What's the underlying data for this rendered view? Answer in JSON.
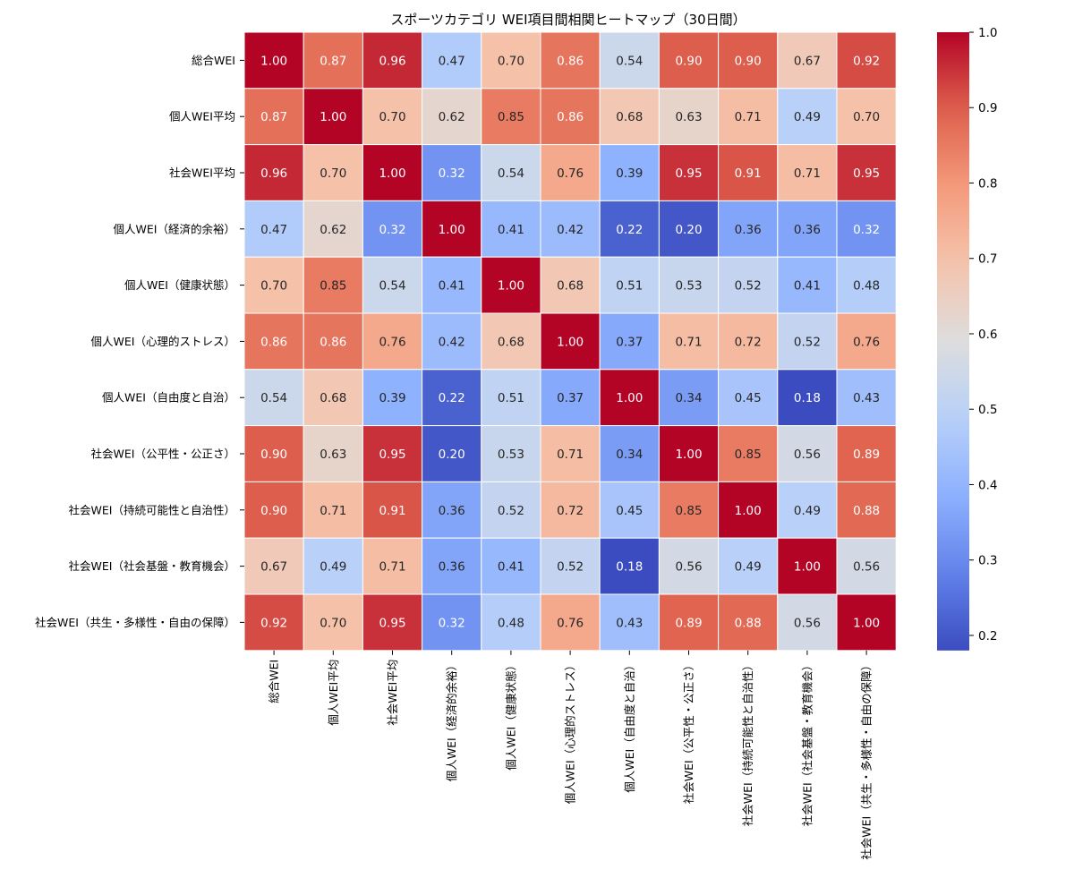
{
  "chart_data": {
    "type": "heatmap",
    "title": "スポーツカテゴリ WEI項目間相関ヒートマップ（30日間）",
    "xlabel": "",
    "ylabel": "",
    "labels": [
      "総合WEI",
      "個人WEI平均",
      "社会WEI平均",
      "個人WEI（経済的余裕）",
      "個人WEI（健康状態）",
      "個人WEI（心理的ストレス）",
      "個人WEI（自由度と自治）",
      "社会WEI（公平性・公正さ）",
      "社会WEI（持続可能性と自治性）",
      "社会WEI（社会基盤・教育機会）",
      "社会WEI（共生・多様性・自由の保障）"
    ],
    "matrix": [
      [
        1.0,
        0.87,
        0.96,
        0.47,
        0.7,
        0.86,
        0.54,
        0.9,
        0.9,
        0.67,
        0.92
      ],
      [
        0.87,
        1.0,
        0.7,
        0.62,
        0.85,
        0.86,
        0.68,
        0.63,
        0.71,
        0.49,
        0.7
      ],
      [
        0.96,
        0.7,
        1.0,
        0.32,
        0.54,
        0.76,
        0.39,
        0.95,
        0.91,
        0.71,
        0.95
      ],
      [
        0.47,
        0.62,
        0.32,
        1.0,
        0.41,
        0.42,
        0.22,
        0.2,
        0.36,
        0.36,
        0.32
      ],
      [
        0.7,
        0.85,
        0.54,
        0.41,
        1.0,
        0.68,
        0.51,
        0.53,
        0.52,
        0.41,
        0.48
      ],
      [
        0.86,
        0.86,
        0.76,
        0.42,
        0.68,
        1.0,
        0.37,
        0.71,
        0.72,
        0.52,
        0.76
      ],
      [
        0.54,
        0.68,
        0.39,
        0.22,
        0.51,
        0.37,
        1.0,
        0.34,
        0.45,
        0.18,
        0.43
      ],
      [
        0.9,
        0.63,
        0.95,
        0.2,
        0.53,
        0.71,
        0.34,
        1.0,
        0.85,
        0.56,
        0.89
      ],
      [
        0.9,
        0.71,
        0.91,
        0.36,
        0.52,
        0.72,
        0.45,
        0.85,
        1.0,
        0.49,
        0.88
      ],
      [
        0.67,
        0.49,
        0.71,
        0.36,
        0.41,
        0.52,
        0.18,
        0.56,
        0.49,
        1.0,
        0.56
      ],
      [
        0.92,
        0.7,
        0.95,
        0.32,
        0.48,
        0.76,
        0.43,
        0.89,
        0.88,
        0.56,
        1.0
      ]
    ],
    "colormap": "coolwarm",
    "colorbar": {
      "range": [
        0.18,
        1.0
      ],
      "ticks": [
        "0.2",
        "0.3",
        "0.4",
        "0.5",
        "0.6",
        "0.7",
        "0.8",
        "0.9",
        "1.0"
      ]
    },
    "annotated": true
  }
}
